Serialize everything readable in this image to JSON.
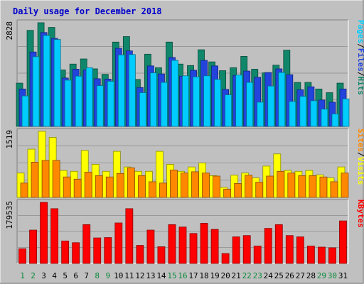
{
  "chart_data": {
    "type": "bar",
    "title": "Daily usage for December 2018",
    "categories": [
      "1",
      "2",
      "3",
      "4",
      "5",
      "6",
      "7",
      "8",
      "9",
      "10",
      "11",
      "12",
      "13",
      "14",
      "15",
      "16",
      "17",
      "18",
      "19",
      "20",
      "21",
      "22",
      "23",
      "24",
      "25",
      "26",
      "27",
      "28",
      "29",
      "30",
      "31"
    ],
    "weekend_days": [
      "1",
      "2",
      "8",
      "9",
      "15",
      "16",
      "22",
      "23",
      "29",
      "30"
    ],
    "panels": [
      {
        "id": "hits",
        "ymax_label": "2828",
        "ymax": 2828,
        "legend": [
          "Pages",
          "Files",
          "Hits"
        ],
        "series": [
          {
            "name": "Hits",
            "color": "#10876a",
            "values": [
              1180,
              2620,
              2828,
              2700,
              1540,
              1700,
              1840,
              1570,
              1420,
              2300,
              2450,
              1280,
              1970,
              1600,
              2300,
              1700,
              1660,
              2090,
              1760,
              1520,
              1600,
              1910,
              1560,
              1460,
              1670,
              2080,
              1200,
              1200,
              1020,
              920,
              1180
            ]
          },
          {
            "name": "Files",
            "color": "#2244dd",
            "values": [
              1020,
              2030,
              2560,
              2400,
              1320,
              1560,
              1540,
              1300,
              1290,
              2130,
              2060,
              1060,
              1650,
              1430,
              1880,
              1370,
              1530,
              1800,
              1650,
              1010,
              1390,
              1510,
              1340,
              1470,
              1570,
              1410,
              1000,
              1080,
              720,
              660,
              1020
            ]
          },
          {
            "name": "Pages",
            "color": "#00ccff",
            "values": [
              830,
              1900,
              2480,
              2370,
              1260,
              1370,
              1600,
              1110,
              1230,
              1950,
              1960,
              920,
              1460,
              1200,
              1800,
              1380,
              1350,
              1380,
              1280,
              860,
              1400,
              1200,
              660,
              1100,
              1470,
              680,
              820,
              700,
              470,
              340,
              750
            ]
          }
        ]
      },
      {
        "id": "visits",
        "ymax_label": "1519",
        "ymax": 1519,
        "legend": [
          "Sites",
          "Visits"
        ],
        "series": [
          {
            "name": "Visits",
            "color": "#ffff00",
            "values": [
              560,
              1110,
              1519,
              1380,
              620,
              600,
              1080,
              760,
              600,
              1060,
              700,
              600,
              600,
              1060,
              760,
              600,
              700,
              790,
              500,
              230,
              510,
              560,
              450,
              720,
              1000,
              620,
              600,
              620,
              520,
              450,
              700
            ]
          },
          {
            "name": "Sites",
            "color": "#ff8800",
            "values": [
              330,
              810,
              850,
              850,
              470,
              420,
              580,
              500,
              470,
              550,
              680,
              500,
              360,
              330,
              630,
              560,
              590,
              560,
              490,
              190,
              320,
              510,
              350,
              490,
              600,
              560,
              500,
              500,
              470,
              360,
              560
            ]
          }
        ]
      },
      {
        "id": "kbytes",
        "ymax_label": "179535",
        "ymax": 179535,
        "legend": [
          "KBytes"
        ],
        "series": [
          {
            "name": "KBytes",
            "color": "#ff0000",
            "values": [
              43000,
              98000,
              179535,
              161000,
              66000,
              61000,
              114000,
              75000,
              76000,
              119000,
              161000,
              53000,
              98000,
              49000,
              114000,
              107000,
              88000,
              118000,
              100000,
              29000,
              78000,
              82000,
              51000,
              103000,
              114000,
              82000,
              78000,
              51000,
              48000,
              46000,
              125000
            ]
          }
        ]
      }
    ]
  }
}
